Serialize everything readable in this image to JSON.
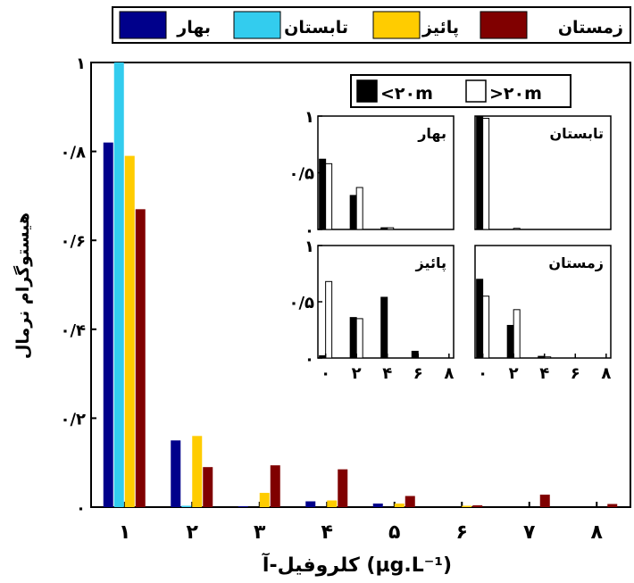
{
  "chart_data": [
    {
      "type": "bar",
      "xlabel": "کلروفیل-آ (µg.L⁻¹)",
      "ylabel": "هیستوگرام نرمال",
      "categories": [
        "۱",
        "۲",
        "۳",
        "۴",
        "۵",
        "۶",
        "۷",
        "۸"
      ],
      "yticks": [
        "۰",
        "۰/۲",
        "۰/۴",
        "۰/۶",
        "۰/۸",
        "۱"
      ],
      "ylim": [
        0,
        1
      ],
      "legend_position": "top",
      "series": [
        {
          "name": "بهار",
          "color": "#00008b",
          "values": [
            0.82,
            0.15,
            0.002,
            0.013,
            0.008,
            0,
            0,
            0
          ]
        },
        {
          "name": "تابستان",
          "color": "#33ccee",
          "values": [
            1.0,
            0.003,
            0,
            0,
            0,
            0,
            0,
            0
          ]
        },
        {
          "name": "پائیز",
          "color": "#ffcc00",
          "values": [
            0.79,
            0.16,
            0.032,
            0.015,
            0.008,
            0.003,
            0,
            0
          ]
        },
        {
          "name": "زمستان",
          "color": "#800000",
          "values": [
            0.67,
            0.09,
            0.094,
            0.085,
            0.025,
            0.004,
            0.028,
            0.007
          ]
        }
      ]
    },
    {
      "type": "bar",
      "inset": true,
      "legend": [
        {
          "label": "<۲۰m",
          "color": "#000000"
        },
        {
          "label": ">۲۰m",
          "color": "#ffffff"
        }
      ],
      "xticks": [
        "۰",
        "۲",
        "۴",
        "۶",
        "۸"
      ],
      "yticks_left": [
        "۰",
        "۰/۵",
        "۱"
      ],
      "xlim": [
        -0.5,
        8.3
      ],
      "ylim": [
        0,
        1
      ],
      "panels": [
        {
          "title": "بهار",
          "bars": [
            {
              "x": 0,
              "shallow": 0.62,
              "deep": 0.58
            },
            {
              "x": 2,
              "shallow": 0.3,
              "deep": 0.37
            },
            {
              "x": 4,
              "shallow": 0.015,
              "deep": 0.015
            }
          ]
        },
        {
          "title": "تابستان",
          "bars": [
            {
              "x": 0,
              "shallow": 1.0,
              "deep": 0.98
            },
            {
              "x": 2,
              "shallow": 0,
              "deep": 0.01
            }
          ]
        },
        {
          "title": "پائیز",
          "bars": [
            {
              "x": 0,
              "shallow": 0.02,
              "deep": 0.68
            },
            {
              "x": 2,
              "shallow": 0.36,
              "deep": 0.35
            },
            {
              "x": 4,
              "shallow": 0.54,
              "deep": 0
            },
            {
              "x": 6,
              "shallow": 0.06,
              "deep": 0
            }
          ]
        },
        {
          "title": "زمستان",
          "bars": [
            {
              "x": 0,
              "shallow": 0.7,
              "deep": 0.55
            },
            {
              "x": 2,
              "shallow": 0.29,
              "deep": 0.43
            },
            {
              "x": 4,
              "shallow": 0.015,
              "deep": 0.01
            }
          ]
        }
      ]
    }
  ]
}
